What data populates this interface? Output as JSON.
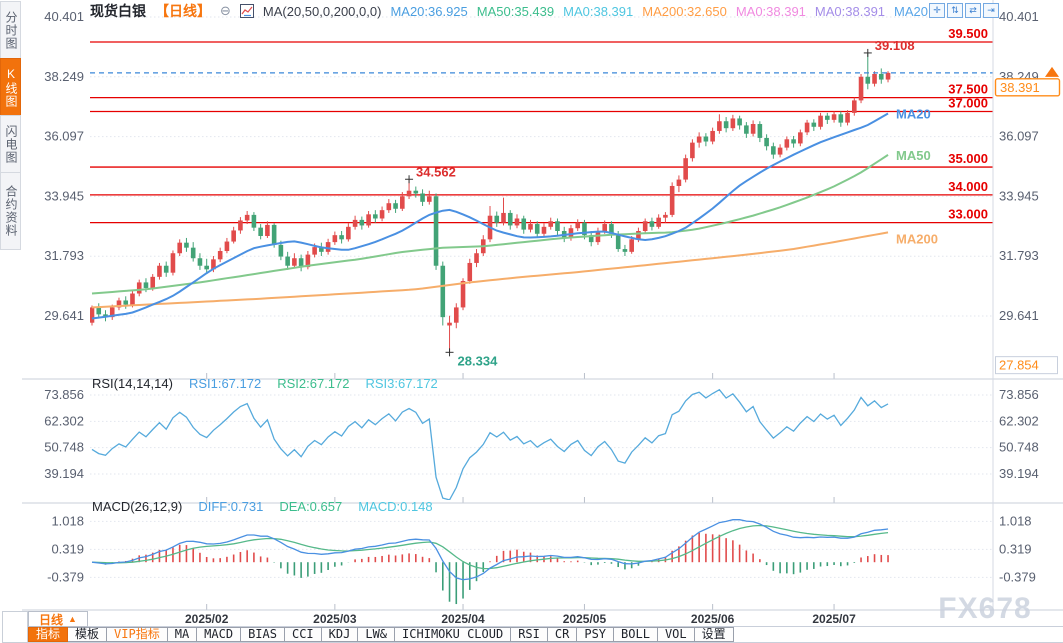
{
  "sidebar": {
    "tabs": [
      {
        "label": "分时图",
        "active": false
      },
      {
        "label": "K线图",
        "active": true
      },
      {
        "label": "闪电图",
        "active": false
      },
      {
        "label": "合约资料",
        "active": false
      }
    ]
  },
  "header": {
    "symbol": "现货白银",
    "timeframe": "【日线】",
    "collapse_icon": "⊖",
    "ma_formula": "MA(20,50,0,200,0,0)",
    "ma_values": [
      {
        "text": "MA20:36.925",
        "color": "#4a9ee0"
      },
      {
        "text": "MA50:35.439",
        "color": "#3cbd8d"
      },
      {
        "text": "MA0:38.391",
        "color": "#4fc6e0"
      },
      {
        "text": "MA200:32.650",
        "color": "#ff9d45"
      },
      {
        "text": "MA0:38.391",
        "color": "#f08ae0"
      },
      {
        "text": "MA0:38.391",
        "color": "#a48de8"
      },
      {
        "text": "MA20:",
        "color": "#58a5e8"
      }
    ]
  },
  "toolbar": {
    "icons": [
      {
        "name": "pan-icon",
        "glyph": "✛"
      },
      {
        "name": "scale-vertical-icon",
        "glyph": "⇅"
      },
      {
        "name": "scale-horizontal-icon",
        "glyph": "⇄"
      },
      {
        "name": "shift-right-icon",
        "glyph": "⇥"
      }
    ]
  },
  "bottom": {
    "timeframe_button": {
      "label": "日线",
      "arrow": "▲"
    },
    "tabs": [
      {
        "label": "指标",
        "state": "active"
      },
      {
        "label": "模板",
        "state": "normal"
      },
      {
        "label": "VIP指标",
        "state": "vip"
      },
      {
        "label": "MA",
        "state": "normal"
      },
      {
        "label": "MACD",
        "state": "normal"
      },
      {
        "label": "BIAS",
        "state": "normal"
      },
      {
        "label": "CCI",
        "state": "normal"
      },
      {
        "label": "KDJ",
        "state": "normal"
      },
      {
        "label": "LW&",
        "state": "normal"
      },
      {
        "label": "ICHIMOKU CLOUD",
        "state": "normal"
      },
      {
        "label": "RSI",
        "state": "normal"
      },
      {
        "label": "CR",
        "state": "normal"
      },
      {
        "label": "PSY",
        "state": "normal"
      },
      {
        "label": "BOLL",
        "state": "normal"
      },
      {
        "label": "VOL",
        "state": "normal"
      },
      {
        "label": "设置",
        "state": "normal"
      }
    ]
  },
  "watermark": "FX678",
  "chart_data": {
    "type": "candlestick",
    "title": "现货白银 日线",
    "colors": {
      "up": "#e14b4b",
      "down": "#42a376",
      "ma20": "#4a90e2",
      "ma50": "#82c98c",
      "ma200": "#f6ad6a",
      "level_line": "#e60000",
      "last_price_line": "#3a87d8",
      "badge": "#ff8c1a",
      "axis_text": "#596070",
      "annotation_high": "#dc2f2f",
      "annotation_low": "#2fa389",
      "rsi_line": "#56aadc",
      "macd_diff": "#4a90e2",
      "macd_dea": "#56b98a",
      "hist_pos": "#e14b4b",
      "hist_neg": "#3b9e78"
    },
    "price_ticks": [
      {
        "label": "40.401",
        "value": 40.401
      },
      {
        "label": "38.249",
        "value": 38.249
      },
      {
        "label": "36.097",
        "value": 36.097
      },
      {
        "label": "33.945",
        "value": 33.945
      },
      {
        "label": "31.793",
        "value": 31.793
      },
      {
        "label": "29.641",
        "value": 29.641
      }
    ],
    "level_lines": [
      {
        "label": "39.500",
        "value": 39.5
      },
      {
        "label": "37.500",
        "value": 37.5
      },
      {
        "label": "37.000",
        "value": 37.0
      },
      {
        "label": "35.000",
        "value": 35.0
      },
      {
        "label": "34.000",
        "value": 34.0
      },
      {
        "label": "33.000",
        "value": 33.0
      }
    ],
    "last_price": {
      "label": "38.391",
      "value": 38.391
    },
    "low_marker": {
      "label": "27.854",
      "value": 27.854
    },
    "annotations": [
      {
        "label": "39.108",
        "value": 39.108,
        "index": 115,
        "pos": "high",
        "color": "#dc2f2f"
      },
      {
        "label": "34.562",
        "value": 34.562,
        "index": 47,
        "pos": "high",
        "color": "#dc2f2f"
      },
      {
        "label": "28.334",
        "value": 28.334,
        "index": 53,
        "pos": "low",
        "color": "#2fa389"
      }
    ],
    "x_ticks": [
      {
        "label": "2025/02",
        "index": 17
      },
      {
        "label": "2025/03",
        "index": 36
      },
      {
        "label": "2025/04",
        "index": 55
      },
      {
        "label": "2025/05",
        "index": 73
      },
      {
        "label": "2025/06",
        "index": 92
      },
      {
        "label": "2025/07",
        "index": 110
      }
    ],
    "candles": [
      [
        29.4,
        30.02,
        29.3,
        29.95
      ],
      [
        29.95,
        30.1,
        29.55,
        29.7
      ],
      [
        29.7,
        29.85,
        29.45,
        29.6
      ],
      [
        29.6,
        30.05,
        29.5,
        29.95
      ],
      [
        29.95,
        30.3,
        29.85,
        30.2
      ],
      [
        30.2,
        30.35,
        29.9,
        30.05
      ],
      [
        30.05,
        30.55,
        29.95,
        30.45
      ],
      [
        30.45,
        30.95,
        30.35,
        30.85
      ],
      [
        30.85,
        31.0,
        30.5,
        30.65
      ],
      [
        30.65,
        31.15,
        30.55,
        31.05
      ],
      [
        31.05,
        31.55,
        30.95,
        31.45
      ],
      [
        31.45,
        31.6,
        31.05,
        31.2
      ],
      [
        31.2,
        32.0,
        31.1,
        31.9
      ],
      [
        31.9,
        32.4,
        31.8,
        32.28
      ],
      [
        32.28,
        32.45,
        31.95,
        32.1
      ],
      [
        32.1,
        32.3,
        31.6,
        31.72
      ],
      [
        31.72,
        31.9,
        31.3,
        31.45
      ],
      [
        31.45,
        31.7,
        31.15,
        31.32
      ],
      [
        31.32,
        31.8,
        31.22,
        31.68
      ],
      [
        31.68,
        32.1,
        31.58,
        31.98
      ],
      [
        31.98,
        32.45,
        31.9,
        32.32
      ],
      [
        32.32,
        32.85,
        32.25,
        32.72
      ],
      [
        32.72,
        33.2,
        32.6,
        33.08
      ],
      [
        33.08,
        33.42,
        32.95,
        33.28
      ],
      [
        33.28,
        33.38,
        32.7,
        32.82
      ],
      [
        32.82,
        32.95,
        32.4,
        32.52
      ],
      [
        32.52,
        33.05,
        32.45,
        32.92
      ],
      [
        32.92,
        32.98,
        32.1,
        32.2
      ],
      [
        32.2,
        32.35,
        31.65,
        31.78
      ],
      [
        31.78,
        31.95,
        31.3,
        31.45
      ],
      [
        31.45,
        31.9,
        31.35,
        31.72
      ],
      [
        31.72,
        31.85,
        31.25,
        31.4
      ],
      [
        31.4,
        31.98,
        31.32,
        31.85
      ],
      [
        31.85,
        32.25,
        31.75,
        32.12
      ],
      [
        32.12,
        32.28,
        31.8,
        31.95
      ],
      [
        31.95,
        32.42,
        31.85,
        32.3
      ],
      [
        32.3,
        32.68,
        32.2,
        32.55
      ],
      [
        32.55,
        32.7,
        32.25,
        32.4
      ],
      [
        32.4,
        32.98,
        32.32,
        32.85
      ],
      [
        32.85,
        33.25,
        32.75,
        33.1
      ],
      [
        33.1,
        33.22,
        32.75,
        32.9
      ],
      [
        32.9,
        33.42,
        32.82,
        33.3
      ],
      [
        33.3,
        33.45,
        33.0,
        33.15
      ],
      [
        33.15,
        33.58,
        33.05,
        33.45
      ],
      [
        33.45,
        33.85,
        33.35,
        33.7
      ],
      [
        33.7,
        33.82,
        33.35,
        33.5
      ],
      [
        33.5,
        34.1,
        33.42,
        33.95
      ],
      [
        33.95,
        34.562,
        33.85,
        34.15
      ],
      [
        34.15,
        34.3,
        33.9,
        34.05
      ],
      [
        34.05,
        34.2,
        33.6,
        33.75
      ],
      [
        33.75,
        34.15,
        33.65,
        33.95
      ],
      [
        33.95,
        34.05,
        31.3,
        31.45
      ],
      [
        31.45,
        31.6,
        29.3,
        29.6
      ],
      [
        29.3,
        29.65,
        28.334,
        29.4
      ],
      [
        29.4,
        30.1,
        29.2,
        29.95
      ],
      [
        29.95,
        31.0,
        29.85,
        30.9
      ],
      [
        30.9,
        31.7,
        30.8,
        31.55
      ],
      [
        31.55,
        32.05,
        31.4,
        31.9
      ],
      [
        31.9,
        32.55,
        31.8,
        32.4
      ],
      [
        32.4,
        33.6,
        32.3,
        33.25
      ],
      [
        33.25,
        33.4,
        32.85,
        33.0
      ],
      [
        33.0,
        33.9,
        32.9,
        33.35
      ],
      [
        33.35,
        33.45,
        32.75,
        32.9
      ],
      [
        32.9,
        33.3,
        32.8,
        33.15
      ],
      [
        33.15,
        33.25,
        32.6,
        32.75
      ],
      [
        32.75,
        33.1,
        32.65,
        32.95
      ],
      [
        32.95,
        33.05,
        32.45,
        32.6
      ],
      [
        32.6,
        32.98,
        32.5,
        32.85
      ],
      [
        32.85,
        33.18,
        32.75,
        33.05
      ],
      [
        33.05,
        33.15,
        32.55,
        32.7
      ],
      [
        32.7,
        32.85,
        32.3,
        32.45
      ],
      [
        32.45,
        32.92,
        32.35,
        32.8
      ],
      [
        32.8,
        33.12,
        32.7,
        33.0
      ],
      [
        33.0,
        33.1,
        32.4,
        32.55
      ],
      [
        32.55,
        32.7,
        32.15,
        32.3
      ],
      [
        32.3,
        32.82,
        32.2,
        32.7
      ],
      [
        32.7,
        33.08,
        32.6,
        32.95
      ],
      [
        32.95,
        33.05,
        32.45,
        32.6
      ],
      [
        32.6,
        32.7,
        31.95,
        32.05
      ],
      [
        32.05,
        32.2,
        31.8,
        31.95
      ],
      [
        31.95,
        32.52,
        31.88,
        32.4
      ],
      [
        32.4,
        32.82,
        32.3,
        32.7
      ],
      [
        32.7,
        33.15,
        32.6,
        33.05
      ],
      [
        33.05,
        33.18,
        32.72,
        32.85
      ],
      [
        32.85,
        33.3,
        32.78,
        33.18
      ],
      [
        33.18,
        33.38,
        33.0,
        33.28
      ],
      [
        33.28,
        34.45,
        33.2,
        34.32
      ],
      [
        34.32,
        34.7,
        34.1,
        34.55
      ],
      [
        34.55,
        35.45,
        34.45,
        35.32
      ],
      [
        35.32,
        36.0,
        35.2,
        35.88
      ],
      [
        35.88,
        36.25,
        35.7,
        36.1
      ],
      [
        36.1,
        36.22,
        35.75,
        35.92
      ],
      [
        35.92,
        36.42,
        35.82,
        36.3
      ],
      [
        36.3,
        36.9,
        36.2,
        36.65
      ],
      [
        36.65,
        36.8,
        36.25,
        36.4
      ],
      [
        36.4,
        36.88,
        36.3,
        36.75
      ],
      [
        36.75,
        36.85,
        36.35,
        36.5
      ],
      [
        36.5,
        36.62,
        36.05,
        36.2
      ],
      [
        36.2,
        36.68,
        36.1,
        36.55
      ],
      [
        36.55,
        36.65,
        35.9,
        36.05
      ],
      [
        36.05,
        36.18,
        35.6,
        35.75
      ],
      [
        35.75,
        35.88,
        35.3,
        35.45
      ],
      [
        35.45,
        35.82,
        35.35,
        35.7
      ],
      [
        35.7,
        36.1,
        35.6,
        36.0
      ],
      [
        36.0,
        36.12,
        35.7,
        35.85
      ],
      [
        35.85,
        36.35,
        35.75,
        36.25
      ],
      [
        36.25,
        36.7,
        36.15,
        36.6
      ],
      [
        36.6,
        36.72,
        36.3,
        36.45
      ],
      [
        36.45,
        36.95,
        36.35,
        36.85
      ],
      [
        36.85,
        36.95,
        36.55,
        36.7
      ],
      [
        36.7,
        37.0,
        36.6,
        36.9
      ],
      [
        36.9,
        37.0,
        36.45,
        36.6
      ],
      [
        36.6,
        37.05,
        36.5,
        36.95
      ],
      [
        36.95,
        37.5,
        36.85,
        37.4
      ],
      [
        37.4,
        38.35,
        37.3,
        38.25
      ],
      [
        38.25,
        39.108,
        37.8,
        38.0
      ],
      [
        38.0,
        38.45,
        37.9,
        38.35
      ],
      [
        38.35,
        38.55,
        38.0,
        38.15
      ],
      [
        38.15,
        38.45,
        38.05,
        38.391
      ]
    ],
    "ma": {
      "ma20": {
        "label": "MA20",
        "last": 36.925,
        "anchors": [
          [
            0,
            29.55
          ],
          [
            6,
            29.75
          ],
          [
            12,
            30.35
          ],
          [
            18,
            31.35
          ],
          [
            24,
            32.1
          ],
          [
            30,
            32.35
          ],
          [
            34,
            32.1
          ],
          [
            38,
            32.0
          ],
          [
            42,
            32.3
          ],
          [
            46,
            32.7
          ],
          [
            50,
            33.3
          ],
          [
            53,
            33.5
          ],
          [
            56,
            33.2
          ],
          [
            60,
            32.7
          ],
          [
            64,
            32.45
          ],
          [
            68,
            32.5
          ],
          [
            72,
            32.62
          ],
          [
            76,
            32.7
          ],
          [
            79,
            32.5
          ],
          [
            82,
            32.35
          ],
          [
            85,
            32.5
          ],
          [
            88,
            32.8
          ],
          [
            92,
            33.5
          ],
          [
            96,
            34.35
          ],
          [
            100,
            34.95
          ],
          [
            104,
            35.45
          ],
          [
            108,
            35.9
          ],
          [
            112,
            36.25
          ],
          [
            115,
            36.5
          ],
          [
            118,
            36.93
          ]
        ]
      },
      "ma50": {
        "label": "MA50",
        "last": 35.439,
        "anchors": [
          [
            0,
            30.45
          ],
          [
            8,
            30.6
          ],
          [
            16,
            30.85
          ],
          [
            24,
            31.15
          ],
          [
            32,
            31.45
          ],
          [
            40,
            31.7
          ],
          [
            46,
            31.95
          ],
          [
            52,
            32.1
          ],
          [
            58,
            32.15
          ],
          [
            64,
            32.3
          ],
          [
            70,
            32.45
          ],
          [
            76,
            32.55
          ],
          [
            82,
            32.62
          ],
          [
            86,
            32.65
          ],
          [
            90,
            32.78
          ],
          [
            94,
            33.0
          ],
          [
            98,
            33.25
          ],
          [
            102,
            33.55
          ],
          [
            106,
            33.9
          ],
          [
            110,
            34.3
          ],
          [
            114,
            34.8
          ],
          [
            118,
            35.44
          ]
        ]
      },
      "ma200": {
        "label": "MA200",
        "last": 32.65,
        "anchors": [
          [
            0,
            29.95
          ],
          [
            12,
            30.1
          ],
          [
            24,
            30.25
          ],
          [
            36,
            30.42
          ],
          [
            48,
            30.6
          ],
          [
            56,
            30.85
          ],
          [
            64,
            31.05
          ],
          [
            72,
            31.22
          ],
          [
            80,
            31.42
          ],
          [
            88,
            31.62
          ],
          [
            96,
            31.82
          ],
          [
            104,
            32.05
          ],
          [
            110,
            32.3
          ],
          [
            118,
            32.65
          ]
        ]
      }
    },
    "rsi": {
      "title": "RSI(14,14,14)",
      "period": 14,
      "legend": [
        {
          "text": "RSI1:67.172",
          "color": "#4a9ee0"
        },
        {
          "text": "RSI2:67.172",
          "color": "#3cbd8d"
        },
        {
          "text": "RSI3:67.172",
          "color": "#4fc6e0"
        }
      ],
      "ticks": [
        {
          "label": "73.856",
          "value": 73.856
        },
        {
          "label": "62.302",
          "value": 62.302
        },
        {
          "label": "50.748",
          "value": 50.748
        },
        {
          "label": "39.194",
          "value": 39.194
        }
      ]
    },
    "macd": {
      "title": "MACD(26,12,9)",
      "fast": 12,
      "slow": 26,
      "signal": 9,
      "legend": [
        {
          "text": "DIFF:0.731",
          "color": "#4a9ee0"
        },
        {
          "text": "DEA:0.657",
          "color": "#3cbd8d"
        },
        {
          "text": "MACD:0.148",
          "color": "#4fc6e0"
        }
      ],
      "ticks": [
        {
          "label": "1.018",
          "value": 1.018
        },
        {
          "label": "0.319",
          "value": 0.319
        },
        {
          "label": "-0.379",
          "value": -0.379
        }
      ]
    }
  }
}
